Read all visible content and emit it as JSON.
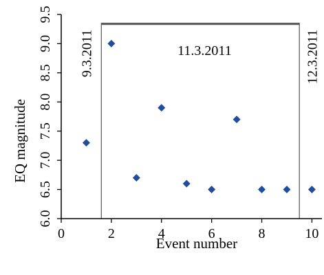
{
  "chart_data": {
    "type": "scatter",
    "title": "",
    "xlabel": "Event number",
    "ylabel": "EQ magnitude",
    "xlim": [
      0,
      10.4
    ],
    "ylim": [
      6.0,
      9.5
    ],
    "x_ticks": [
      0,
      2,
      4,
      6,
      8,
      10
    ],
    "y_ticks": [
      6.0,
      6.5,
      7.0,
      7.5,
      8.0,
      8.5,
      9.0,
      9.5
    ],
    "grid": false,
    "legend": "none",
    "marker_color": "#1F4E9E",
    "series": [
      {
        "points": [
          {
            "x": 1,
            "y": 7.3
          },
          {
            "x": 2,
            "y": 9.0
          },
          {
            "x": 3,
            "y": 6.7
          },
          {
            "x": 4,
            "y": 7.9
          },
          {
            "x": 5,
            "y": 6.6
          },
          {
            "x": 6,
            "y": 6.5
          },
          {
            "x": 7,
            "y": 7.7
          },
          {
            "x": 8,
            "y": 6.5
          },
          {
            "x": 9,
            "y": 6.5
          },
          {
            "x": 10,
            "y": 6.5
          }
        ]
      }
    ],
    "annotations": [
      {
        "text": "9.3.2011",
        "x": 1,
        "orientation": "vertical"
      },
      {
        "text": "11.3.2011",
        "x": 5.5,
        "orientation": "horizontal"
      },
      {
        "text": "12.3.2011",
        "x": 10,
        "orientation": "vertical"
      }
    ],
    "regions": [
      {
        "label": "11.3.2011",
        "x_start": 1.6,
        "x_end": 9.5,
        "y_top": 9.35
      }
    ]
  }
}
